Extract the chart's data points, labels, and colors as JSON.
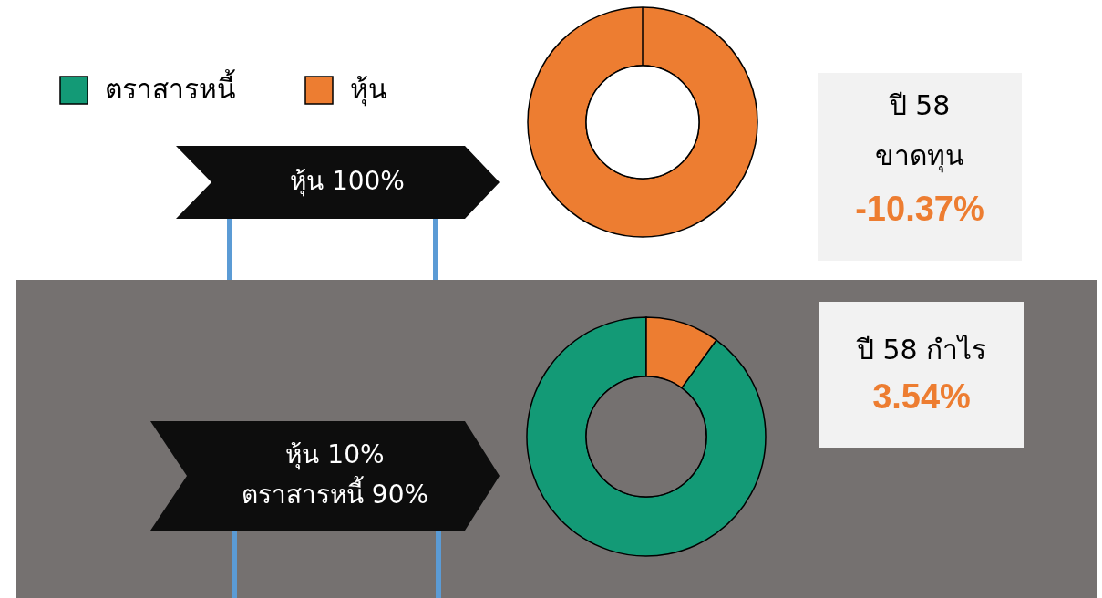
{
  "chart_data": [
    {
      "type": "donut",
      "title": "หุ้น 100%",
      "categories": [
        "ตราสารหนี้",
        "หุ้น"
      ],
      "values": [
        0,
        100
      ],
      "colors": [
        "#139a76",
        "#ed7d31"
      ],
      "legend": "top left",
      "annotations": [
        "ปี 58",
        "ขาดทุน",
        "-10.37%"
      ]
    },
    {
      "type": "donut",
      "title": "หุ้น 10%",
      "subtitle": "ตราสารหนี้ 90%",
      "categories": [
        null,
        null
      ],
      "values": [
        90,
        10
      ],
      "colors": [
        "#139a76",
        "#ed7d31"
      ],
      "annotations": [
        "ปี 58 กำไร",
        "3.54%"
      ]
    }
  ]
}
